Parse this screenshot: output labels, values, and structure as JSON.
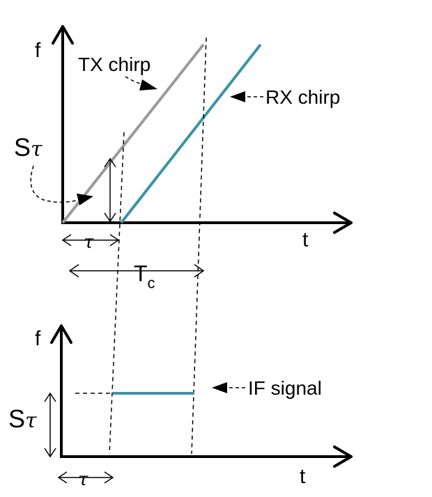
{
  "top_plot": {
    "y_axis_label": "f",
    "x_axis_label": "t",
    "tx_label": "TX chirp",
    "rx_label": "RX chirp",
    "slope_label_s": "S",
    "slope_label_tau": "τ",
    "delay_label": "τ",
    "duration_label_main": "T",
    "duration_label_sub": "c"
  },
  "bottom_plot": {
    "y_axis_label": "f",
    "x_axis_label": "t",
    "if_label": "IF signal",
    "level_label_s": "S",
    "level_label_tau": "τ",
    "delay_label": "τ"
  },
  "colors": {
    "tx_chirp": "#9a9a9a",
    "rx_chirp": "#3c93a5",
    "if_signal": "#3c93a5",
    "axes": "#000000"
  }
}
